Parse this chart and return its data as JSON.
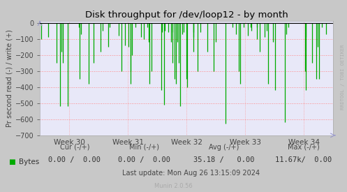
{
  "title": "Disk throughput for /dev/loop12 - by month",
  "ylabel": "Pr second read (-) / write (+)",
  "xlabel_ticks": [
    "Week 30",
    "Week 31",
    "Week 32",
    "Week 33",
    "Week 34"
  ],
  "ylim": [
    -700,
    10
  ],
  "yticks": [
    0,
    -100,
    -200,
    -300,
    -400,
    -500,
    -600,
    -700
  ],
  "bg_color": "#c8c8c8",
  "plot_bg_color": "#e8e8f8",
  "grid_color": "#ff8888",
  "bar_color": "#00aa00",
  "line_color": "#000000",
  "title_color": "#000000",
  "watermark": "RRDTOOL / TOBI OETIKER",
  "legend_label": "Bytes",
  "legend_cur": "0.00 /  0.00",
  "legend_min": "0.00 /  0.00",
  "legend_avg": "35.18 /   0.00",
  "legend_max": "11.67k/  0.00",
  "last_update": "Last update: Mon Aug 26 13:15:09 2024",
  "munin_version": "Munin 2.0.56",
  "arrow_color": "#9999cc",
  "spine_color": "#aaaaaa",
  "tick_color": "#444444",
  "legend_text_color": "#444444"
}
